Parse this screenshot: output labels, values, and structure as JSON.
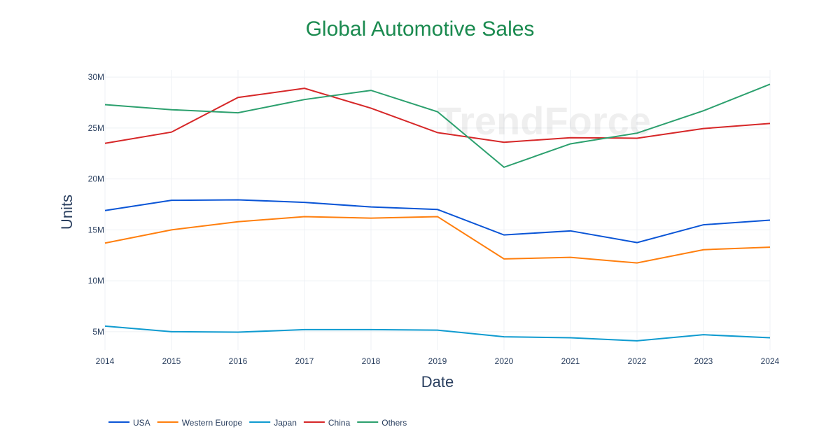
{
  "chart_data": {
    "type": "line",
    "title": "Global Automotive Sales",
    "title_color": "#1a8a4f",
    "xlabel": "Date",
    "ylabel": "Units",
    "x": [
      2014,
      2015,
      2016,
      2017,
      2018,
      2019,
      2020,
      2021,
      2022,
      2023,
      2024
    ],
    "xlim": [
      2014,
      2024
    ],
    "ylim": [
      3.2,
      30.7
    ],
    "yticks": [
      {
        "value": 5,
        "label": "5M"
      },
      {
        "value": 10,
        "label": "10M"
      },
      {
        "value": 15,
        "label": "15M"
      },
      {
        "value": 20,
        "label": "20M"
      },
      {
        "value": 25,
        "label": "25M"
      },
      {
        "value": 30,
        "label": "30M"
      }
    ],
    "units": "millions",
    "grid": true,
    "legend_position": "bottom-left",
    "watermark": "TrendForce",
    "series": [
      {
        "name": "USA",
        "color": "#0a55d6",
        "values": [
          16.9,
          17.9,
          17.95,
          17.7,
          17.25,
          17.0,
          14.5,
          14.9,
          13.75,
          15.5,
          15.95
        ]
      },
      {
        "name": "Western Europe",
        "color": "#ff7f0e",
        "values": [
          13.7,
          15.0,
          15.8,
          16.3,
          16.15,
          16.3,
          12.15,
          12.3,
          11.75,
          13.05,
          13.3
        ]
      },
      {
        "name": "Japan",
        "color": "#0f9bd0",
        "values": [
          5.55,
          5.0,
          4.95,
          5.2,
          5.2,
          5.15,
          4.5,
          4.4,
          4.1,
          4.7,
          4.4
        ]
      },
      {
        "name": "China",
        "color": "#d62728",
        "values": [
          23.5,
          24.6,
          28.0,
          28.9,
          26.95,
          24.55,
          23.6,
          24.05,
          24.0,
          24.95,
          25.45
        ]
      },
      {
        "name": "Others",
        "color": "#2ca06e",
        "values": [
          27.3,
          26.8,
          26.5,
          27.8,
          28.7,
          26.6,
          21.15,
          23.45,
          24.5,
          26.7,
          29.3
        ]
      }
    ]
  }
}
